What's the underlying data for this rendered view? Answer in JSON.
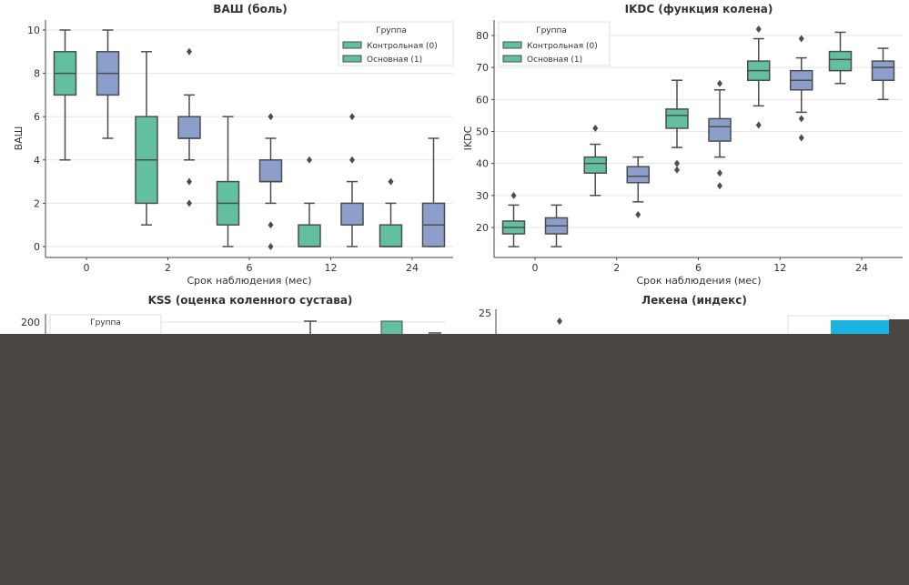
{
  "colors": {
    "control": "#62bfa0",
    "main": "#8c9fca",
    "edge": "#4d4d4d",
    "overlay": "#4b4542",
    "cyan": "#19b3e2"
  },
  "chart_data": [
    {
      "type": "box",
      "title": "ВАШ (боль)",
      "xlabel": "Срок наблюдения (мес)",
      "ylabel": "ВАШ",
      "categories": [
        "0",
        "2",
        "6",
        "12",
        "24"
      ],
      "yticks": [
        0,
        2,
        4,
        6,
        8,
        10
      ],
      "ylim": [
        -0.5,
        10.5
      ],
      "grid": true,
      "legend": {
        "title": "Группа",
        "position": "top-right",
        "entries": [
          "Контрольная (0)",
          "Основная (1)"
        ]
      },
      "series": [
        {
          "name": "Контрольная (0)",
          "color": "#62bfa0",
          "boxes": [
            {
              "whislo": 4,
              "q1": 7,
              "med": 8,
              "q3": 9,
              "whishi": 10,
              "fliers": []
            },
            {
              "whislo": 1,
              "q1": 2,
              "med": 4,
              "q3": 6,
              "whishi": 9,
              "fliers": []
            },
            {
              "whislo": 0,
              "q1": 1,
              "med": 2,
              "q3": 3,
              "whishi": 6,
              "fliers": []
            },
            {
              "whislo": 0,
              "q1": 0,
              "med": 0,
              "q3": 1,
              "whishi": 2,
              "fliers": [
                4
              ]
            },
            {
              "whislo": 0,
              "q1": 0,
              "med": 0,
              "q3": 1,
              "whishi": 2,
              "fliers": [
                3
              ]
            }
          ]
        },
        {
          "name": "Основная (1)",
          "color": "#8c9fca",
          "boxes": [
            {
              "whislo": 5,
              "q1": 7,
              "med": 8,
              "q3": 9,
              "whishi": 10,
              "fliers": []
            },
            {
              "whislo": 4,
              "q1": 5,
              "med": 5,
              "q3": 6,
              "whishi": 7,
              "fliers": [
                9,
                3,
                2
              ]
            },
            {
              "whislo": 2,
              "q1": 3,
              "med": 3,
              "q3": 4,
              "whishi": 5,
              "fliers": [
                6,
                1,
                0
              ]
            },
            {
              "whislo": 0,
              "q1": 1,
              "med": 1,
              "q3": 2,
              "whishi": 3,
              "fliers": [
                6,
                4
              ]
            },
            {
              "whislo": 0,
              "q1": 0,
              "med": 1,
              "q3": 2,
              "whishi": 5,
              "fliers": []
            }
          ]
        }
      ]
    },
    {
      "type": "box",
      "title": "IKDC (функция колена)",
      "xlabel": "Срок наблюдения (мес)",
      "ylabel": "IKDC",
      "categories": [
        "0",
        "2",
        "6",
        "12",
        "24"
      ],
      "yticks": [
        20,
        30,
        40,
        50,
        60,
        70,
        80
      ],
      "ylim": [
        10,
        85
      ],
      "grid": true,
      "legend": {
        "title": "Группа",
        "position": "top-left",
        "entries": [
          "Контрольная (0)",
          "Основная (1)"
        ]
      },
      "series": [
        {
          "name": "Контрольная (0)",
          "color": "#62bfa0",
          "boxes": [
            {
              "whislo": 14,
              "q1": 18,
              "med": 20,
              "q3": 22,
              "whishi": 27,
              "fliers": [
                30
              ]
            },
            {
              "whislo": 30,
              "q1": 37,
              "med": 40,
              "q3": 42,
              "whishi": 46,
              "fliers": [
                51
              ]
            },
            {
              "whislo": 45,
              "q1": 51,
              "med": 55,
              "q3": 57,
              "whishi": 66,
              "fliers": [
                40,
                38
              ]
            },
            {
              "whislo": 58,
              "q1": 66,
              "med": 69,
              "q3": 72,
              "whishi": 79,
              "fliers": [
                82,
                52
              ]
            },
            {
              "whislo": 65,
              "q1": 69,
              "med": 72.5,
              "q3": 75,
              "whishi": 81,
              "fliers": []
            }
          ]
        },
        {
          "name": "Основная (1)",
          "color": "#8c9fca",
          "boxes": [
            {
              "whislo": 14,
              "q1": 18,
              "med": 20.5,
              "q3": 23,
              "whishi": 27,
              "fliers": []
            },
            {
              "whislo": 28,
              "q1": 34,
              "med": 36,
              "q3": 39,
              "whishi": 42,
              "fliers": [
                24
              ]
            },
            {
              "whislo": 42,
              "q1": 47,
              "med": 51.5,
              "q3": 54,
              "whishi": 63,
              "fliers": [
                65,
                37,
                33
              ]
            },
            {
              "whislo": 56,
              "q1": 63,
              "med": 66,
              "q3": 69,
              "whishi": 73,
              "fliers": [
                79,
                54,
                48
              ]
            },
            {
              "whislo": 60,
              "q1": 66,
              "med": 70,
              "q3": 72,
              "whishi": 76,
              "fliers": []
            }
          ]
        }
      ]
    },
    {
      "type": "box",
      "title": "KSS (оценка коленного сустава)",
      "yticks": [
        200
      ],
      "legend": {
        "title": "Группа"
      }
    },
    {
      "type": "box",
      "title": "Лекена (индекс)",
      "yticks": [
        25
      ]
    }
  ]
}
